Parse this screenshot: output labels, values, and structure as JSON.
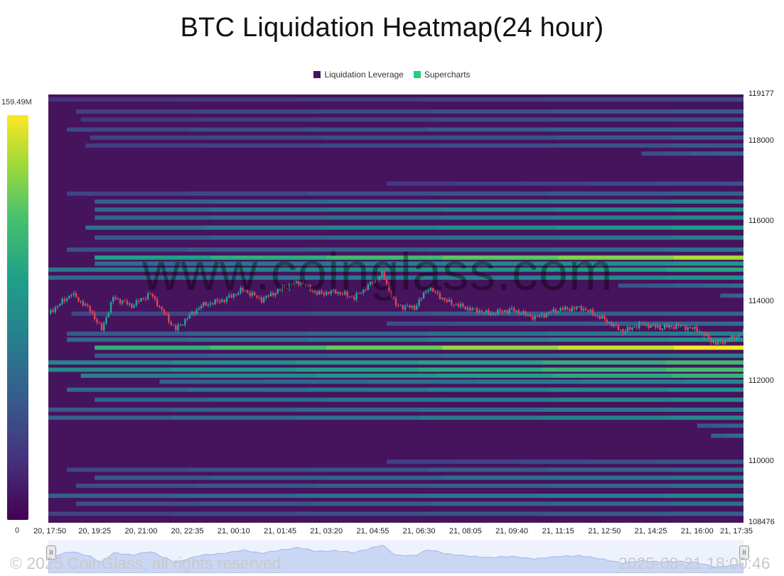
{
  "chart_data": {
    "type": "heatmap",
    "title": "BTC Liquidation Heatmap(24 hour)",
    "legend": [
      {
        "name": "Liquidation Leverage",
        "color": "#46135d"
      },
      {
        "name": "Supercharts",
        "color": "#21d07a"
      }
    ],
    "legend_placement": "top-center",
    "color_scale": {
      "min_label": "0",
      "max_label": "159.49M",
      "min": 0,
      "max": 159.49,
      "unit": "M",
      "colormap": "viridis"
    },
    "yaxis": {
      "min": 108476,
      "max": 119177,
      "ticks": [
        119177,
        118000,
        116000,
        114000,
        112000,
        110000,
        108476
      ],
      "position": "right"
    },
    "xaxis": {
      "ticks": [
        "20, 17:50",
        "20, 19:25",
        "20, 21:00",
        "20, 22:35",
        "21, 00:10",
        "21, 01:45",
        "21, 03:20",
        "21, 04:55",
        "21, 06:30",
        "21, 08:05",
        "21, 09:40",
        "21, 11:15",
        "21, 12:50",
        "21, 14:25",
        "21, 16:00",
        "21, 17:35"
      ]
    },
    "price_path": [
      {
        "t": 0.0,
        "p": 113700
      },
      {
        "t": 0.5,
        "p": 114200
      },
      {
        "t": 0.9,
        "p": 113800
      },
      {
        "t": 1.15,
        "p": 113300
      },
      {
        "t": 1.4,
        "p": 114100
      },
      {
        "t": 1.8,
        "p": 113900
      },
      {
        "t": 2.2,
        "p": 114200
      },
      {
        "t": 2.5,
        "p": 113700
      },
      {
        "t": 2.75,
        "p": 113300
      },
      {
        "t": 3.0,
        "p": 113600
      },
      {
        "t": 3.3,
        "p": 113900
      },
      {
        "t": 3.8,
        "p": 114050
      },
      {
        "t": 4.2,
        "p": 114300
      },
      {
        "t": 4.6,
        "p": 114050
      },
      {
        "t": 5.0,
        "p": 114300
      },
      {
        "t": 5.4,
        "p": 114500
      },
      {
        "t": 5.8,
        "p": 114200
      },
      {
        "t": 6.2,
        "p": 114250
      },
      {
        "t": 6.6,
        "p": 114100
      },
      {
        "t": 7.0,
        "p": 114500
      },
      {
        "t": 7.2,
        "p": 114700
      },
      {
        "t": 7.5,
        "p": 113900
      },
      {
        "t": 7.9,
        "p": 113850
      },
      {
        "t": 8.2,
        "p": 114350
      },
      {
        "t": 8.6,
        "p": 114000
      },
      {
        "t": 9.0,
        "p": 113850
      },
      {
        "t": 9.5,
        "p": 113700
      },
      {
        "t": 10.0,
        "p": 113800
      },
      {
        "t": 10.5,
        "p": 113600
      },
      {
        "t": 11.0,
        "p": 113800
      },
      {
        "t": 11.5,
        "p": 113850
      },
      {
        "t": 12.0,
        "p": 113550
      },
      {
        "t": 12.4,
        "p": 113250
      },
      {
        "t": 12.8,
        "p": 113450
      },
      {
        "t": 13.2,
        "p": 113350
      },
      {
        "t": 13.6,
        "p": 113400
      },
      {
        "t": 14.0,
        "p": 113300
      },
      {
        "t": 14.4,
        "p": 112950
      },
      {
        "t": 14.8,
        "p": 113100
      },
      {
        "t": 15.1,
        "p": 113300
      },
      {
        "t": 15.4,
        "p": 113250
      },
      {
        "t": 15.6,
        "p": 113600
      },
      {
        "t": 15.75,
        "p": 113800
      },
      {
        "t": 15.9,
        "p": 113250
      },
      {
        "t": 16.0,
        "p": 112900
      }
    ],
    "liquidation_bands": [
      {
        "price": 119050,
        "start": 0.0,
        "end": 16.0,
        "v": 0.22
      },
      {
        "price": 118750,
        "start": 0.6,
        "end": 16.0,
        "v": 0.28
      },
      {
        "price": 118550,
        "start": 0.7,
        "end": 16.0,
        "v": 0.25
      },
      {
        "price": 118300,
        "start": 0.4,
        "end": 16.0,
        "v": 0.32
      },
      {
        "price": 118100,
        "start": 0.9,
        "end": 16.0,
        "v": 0.3
      },
      {
        "price": 117900,
        "start": 0.8,
        "end": 16.0,
        "v": 0.27
      },
      {
        "price": 117700,
        "start": 12.8,
        "end": 16.0,
        "v": 0.36
      },
      {
        "price": 116950,
        "start": 7.3,
        "end": 16.0,
        "v": 0.25
      },
      {
        "price": 116700,
        "start": 0.4,
        "end": 16.0,
        "v": 0.3
      },
      {
        "price": 116500,
        "start": 1.0,
        "end": 16.0,
        "v": 0.45
      },
      {
        "price": 116300,
        "start": 1.0,
        "end": 16.0,
        "v": 0.5
      },
      {
        "price": 116100,
        "start": 1.0,
        "end": 16.0,
        "v": 0.46
      },
      {
        "price": 115850,
        "start": 0.8,
        "end": 16.0,
        "v": 0.55
      },
      {
        "price": 115600,
        "start": 1.0,
        "end": 16.0,
        "v": 0.42
      },
      {
        "price": 115300,
        "start": 0.4,
        "end": 16.0,
        "v": 0.38
      },
      {
        "price": 115100,
        "start": 1.0,
        "end": 16.0,
        "v": 0.85
      },
      {
        "price": 114950,
        "start": 1.0,
        "end": 16.0,
        "v": 0.52
      },
      {
        "price": 114800,
        "start": 0.0,
        "end": 16.0,
        "v": 0.6
      },
      {
        "price": 114600,
        "start": 0.0,
        "end": 16.0,
        "v": 0.5
      },
      {
        "price": 114400,
        "start": 12.3,
        "end": 16.0,
        "v": 0.38
      },
      {
        "price": 114150,
        "start": 14.5,
        "end": 16.0,
        "v": 0.42
      },
      {
        "price": 113700,
        "start": 0.5,
        "end": 16.0,
        "v": 0.32
      },
      {
        "price": 113450,
        "start": 7.3,
        "end": 16.0,
        "v": 0.35
      },
      {
        "price": 113200,
        "start": 0.4,
        "end": 16.0,
        "v": 0.42
      },
      {
        "price": 113050,
        "start": 0.4,
        "end": 16.0,
        "v": 0.5
      },
      {
        "price": 112850,
        "start": 1.0,
        "end": 16.0,
        "v": 0.95
      },
      {
        "price": 112650,
        "start": 1.0,
        "end": 16.0,
        "v": 0.42
      },
      {
        "price": 112480,
        "start": 0.0,
        "end": 16.0,
        "v": 0.68
      },
      {
        "price": 112300,
        "start": 0.0,
        "end": 16.0,
        "v": 0.7
      },
      {
        "price": 112150,
        "start": 0.7,
        "end": 16.0,
        "v": 0.65
      },
      {
        "price": 112000,
        "start": 2.4,
        "end": 16.0,
        "v": 0.45
      },
      {
        "price": 111800,
        "start": 0.4,
        "end": 16.0,
        "v": 0.5
      },
      {
        "price": 111550,
        "start": 1.0,
        "end": 16.0,
        "v": 0.48
      },
      {
        "price": 111300,
        "start": 0.0,
        "end": 16.0,
        "v": 0.42
      },
      {
        "price": 111100,
        "start": 0.0,
        "end": 16.0,
        "v": 0.46
      },
      {
        "price": 110900,
        "start": 14.0,
        "end": 16.0,
        "v": 0.4
      },
      {
        "price": 110650,
        "start": 14.3,
        "end": 16.0,
        "v": 0.45
      },
      {
        "price": 110000,
        "start": 7.3,
        "end": 16.0,
        "v": 0.28
      },
      {
        "price": 109800,
        "start": 0.4,
        "end": 16.0,
        "v": 0.32
      },
      {
        "price": 109600,
        "start": 1.0,
        "end": 16.0,
        "v": 0.4
      },
      {
        "price": 109400,
        "start": 0.6,
        "end": 16.0,
        "v": 0.36
      },
      {
        "price": 109150,
        "start": 0.0,
        "end": 16.0,
        "v": 0.45
      },
      {
        "price": 108950,
        "start": 0.6,
        "end": 16.0,
        "v": 0.36
      },
      {
        "price": 108700,
        "start": 0.0,
        "end": 16.0,
        "v": 0.3
      }
    ],
    "grid": false
  },
  "watermark": "www.coinglass.com",
  "footer": {
    "copyright": "© 2025 CoinGlass, all rights reserved",
    "timestamp": "2025-08-21 18:00:46"
  },
  "navigator": {
    "left_handle": "II",
    "right_handle": "II"
  }
}
